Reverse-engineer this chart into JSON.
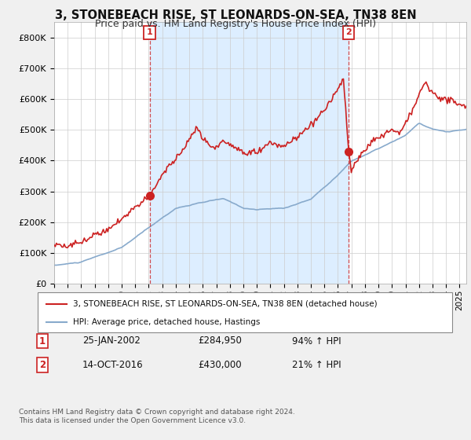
{
  "title": "3, STONEBEACH RISE, ST LEONARDS-ON-SEA, TN38 8EN",
  "subtitle": "Price paid vs. HM Land Registry's House Price Index (HPI)",
  "title_fontsize": 10.5,
  "subtitle_fontsize": 9,
  "ylim": [
    0,
    850000
  ],
  "yticks": [
    0,
    100000,
    200000,
    300000,
    400000,
    500000,
    600000,
    700000,
    800000
  ],
  "ytick_labels": [
    "£0",
    "£100K",
    "£200K",
    "£300K",
    "£400K",
    "£500K",
    "£600K",
    "£700K",
    "£800K"
  ],
  "xlim_start": 1995.0,
  "xlim_end": 2025.5,
  "red_line_color": "#cc2222",
  "blue_line_color": "#88aacc",
  "shade_color": "#ddeeff",
  "vline_color": "#cc2222",
  "sale1_x": 2002.07,
  "sale1_y": 284950,
  "sale2_x": 2016.79,
  "sale2_y": 430000,
  "sale1_label": "1",
  "sale2_label": "2",
  "legend_label_red": "3, STONEBEACH RISE, ST LEONARDS-ON-SEA, TN38 8EN (detached house)",
  "legend_label_blue": "HPI: Average price, detached house, Hastings",
  "table_row1": [
    "1",
    "25-JAN-2002",
    "£284,950",
    "94% ↑ HPI"
  ],
  "table_row2": [
    "2",
    "14-OCT-2016",
    "£430,000",
    "21% ↑ HPI"
  ],
  "footer1": "Contains HM Land Registry data © Crown copyright and database right 2024.",
  "footer2": "This data is licensed under the Open Government Licence v3.0.",
  "bg_color": "#f0f0f0",
  "plot_bg_color": "#ffffff",
  "grid_color": "#cccccc"
}
